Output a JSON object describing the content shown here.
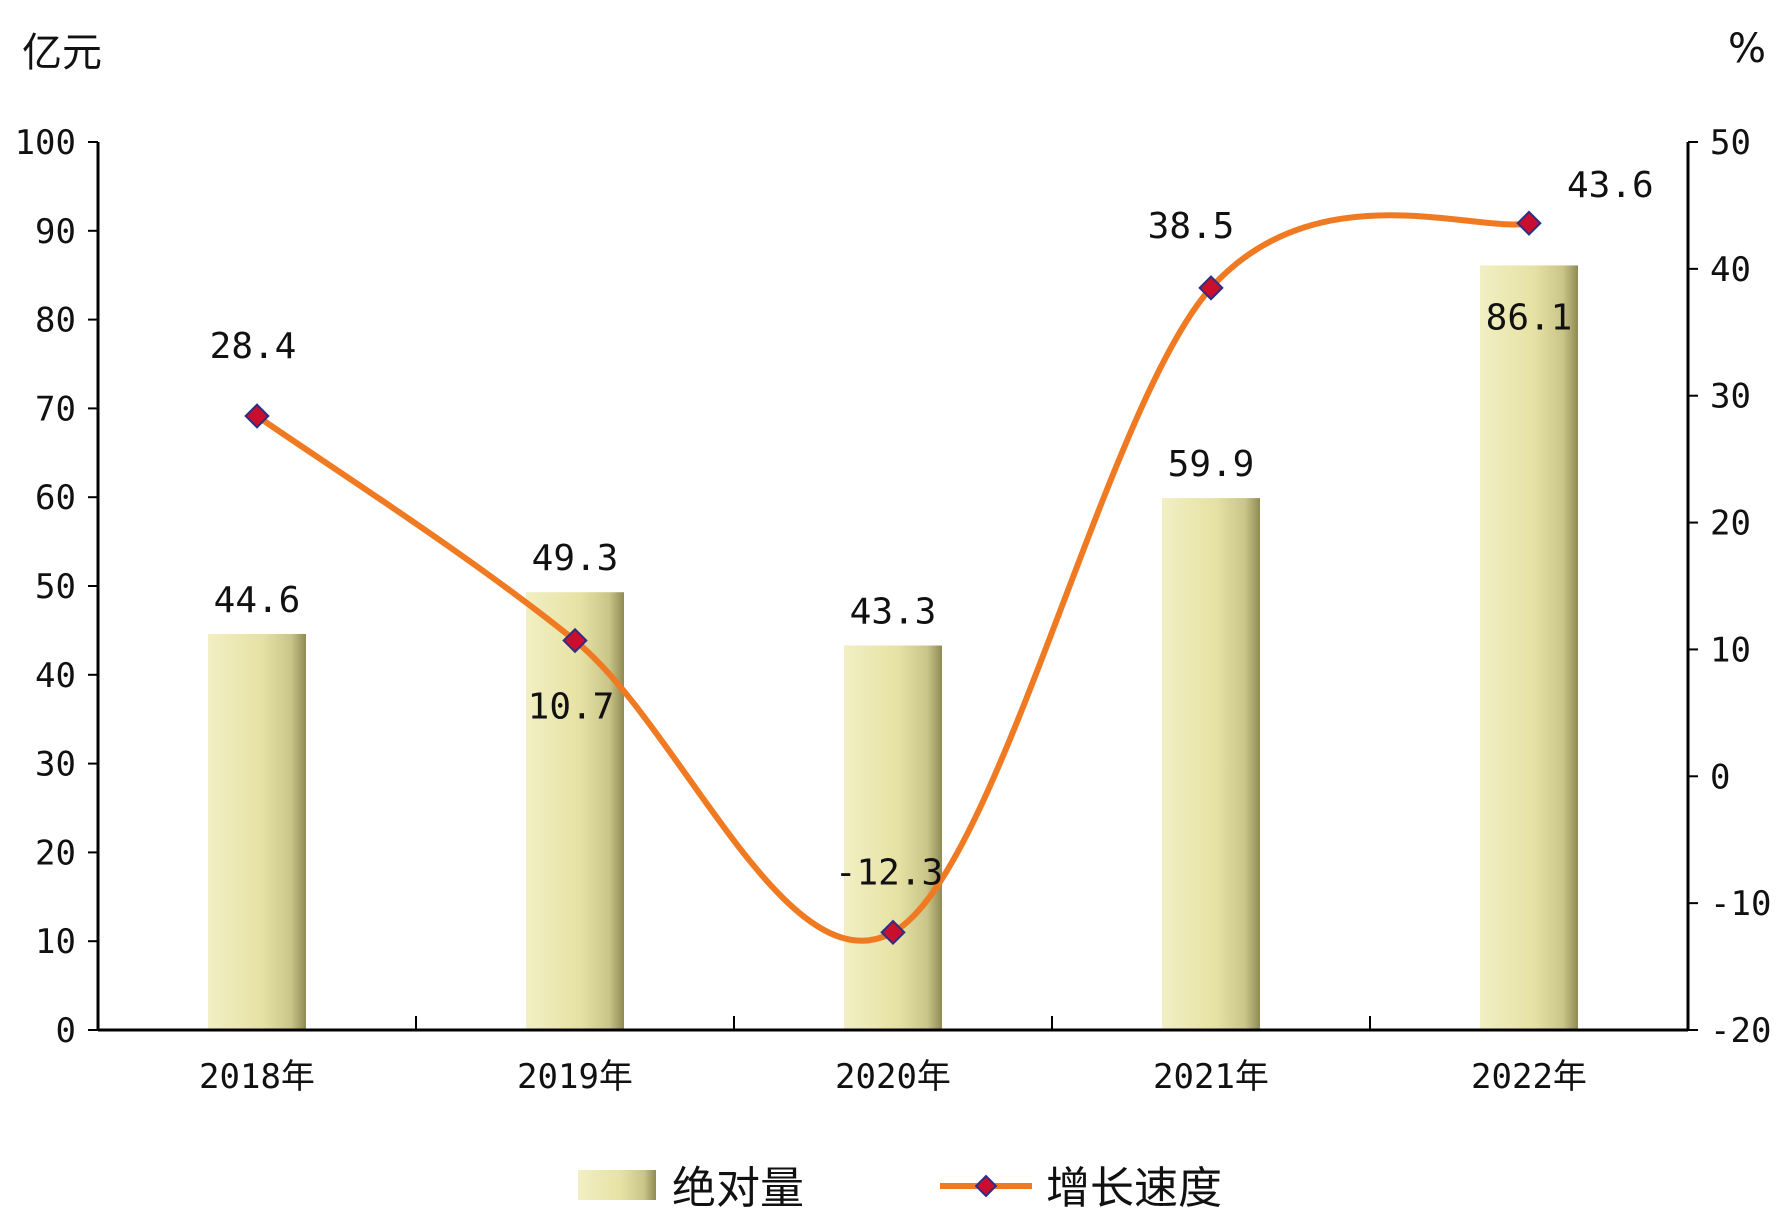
{
  "chart_data": {
    "type": "bar",
    "categories": [
      "2018年",
      "2019年",
      "2020年",
      "2021年",
      "2022年"
    ],
    "series": [
      {
        "name": "绝对量",
        "type": "bar",
        "axis": "left",
        "color": "#e6e2a4",
        "values": [
          44.6,
          49.3,
          43.3,
          59.9,
          86.1
        ]
      },
      {
        "name": "增长速度",
        "type": "line",
        "axis": "right",
        "color": "#f07a22",
        "marker_color": "#c8102e",
        "values": [
          28.4,
          10.7,
          -12.3,
          38.5,
          43.6
        ]
      }
    ],
    "left_axis": {
      "unit": "亿元",
      "ylim": [
        0,
        100
      ],
      "ticks": [
        "0",
        "10",
        "20",
        "30",
        "40",
        "50",
        "60",
        "70",
        "80",
        "90",
        "100"
      ]
    },
    "right_axis": {
      "unit": "%",
      "ylim": [
        -20,
        50
      ],
      "ticks": [
        "-20",
        "-10",
        "0",
        "10",
        "20",
        "30",
        "40",
        "50"
      ]
    },
    "bar_labels": [
      "44.6",
      "49.3",
      "43.3",
      "59.9",
      "86.1"
    ],
    "line_labels": [
      "28.4",
      "10.7",
      "-12.3",
      "38.5",
      "43.6"
    ],
    "legend": {
      "position": "bottom",
      "items": [
        "绝对量",
        "增长速度"
      ]
    },
    "grid": false
  }
}
